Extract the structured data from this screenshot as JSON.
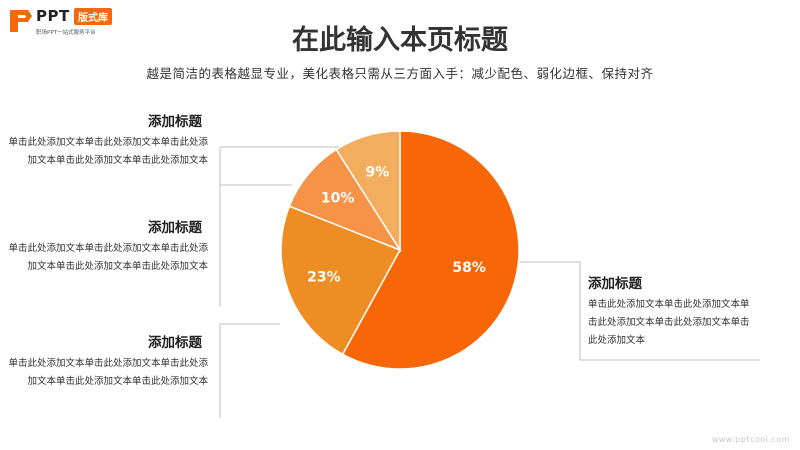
{
  "logo": {
    "text": "PPT",
    "badge": "版式库",
    "subtitle": "职场PPT一站式服务平台",
    "brand_color": "#f26a0b"
  },
  "title": "在此输入本页标题",
  "subtitle": "越是简洁的表格越显专业，美化表格只需从三方面入手：减少配色、弱化边框、保持对齐",
  "blocks": [
    {
      "title": "添加标题",
      "text": "单击此处添加文本单击此处添加文本单击此处添加文本单击此处添加文本单击此处添加文本"
    },
    {
      "title": "添加标题",
      "text": "单击此处添加文本单击此处添加文本单击此处添加文本单击此处添加文本单击此处添加文本"
    },
    {
      "title": "添加标题",
      "text": "单击此处添加文本单击此处添加文本单击此处添加文本单击此处添加文本单击此处添加文本"
    },
    {
      "title": "添加标题",
      "text": "单击此处添加文本单击此处添加文本单击此处添加文本单击此处添加文本单击此处添加文本"
    }
  ],
  "chart_data": {
    "type": "pie",
    "values": [
      58,
      23,
      10,
      9
    ],
    "labels": [
      "58%",
      "23%",
      "10%",
      "9%"
    ],
    "colors": [
      "#f76707",
      "#ef8d25",
      "#f79346",
      "#f3ad5e"
    ]
  },
  "watermark": "www.pptcool.com"
}
